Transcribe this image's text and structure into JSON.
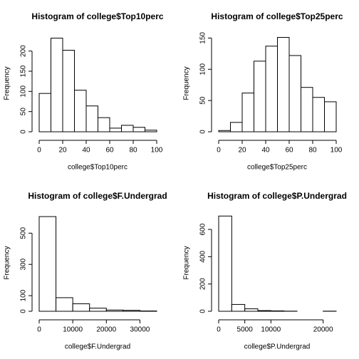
{
  "chart_data": [
    {
      "type": "histogram",
      "title": "Histogram of college$Top10perc",
      "xlabel": "college$Top10perc",
      "ylabel": "Frequency",
      "bins": [
        0,
        10,
        20,
        30,
        40,
        50,
        60,
        70,
        80,
        90,
        100
      ],
      "counts": [
        95,
        232,
        202,
        103,
        64,
        35,
        9,
        16,
        11,
        4
      ],
      "xlim": [
        0,
        100
      ],
      "ylim": [
        0,
        240
      ],
      "xticks": [
        0,
        20,
        40,
        60,
        80,
        100
      ],
      "yticks": [
        0,
        50,
        100,
        150,
        200
      ]
    },
    {
      "type": "histogram",
      "title": "Histogram of college$Top25perc",
      "xlabel": "college$Top25perc",
      "ylabel": "Frequency",
      "bins": [
        0,
        10,
        20,
        30,
        40,
        50,
        60,
        70,
        80,
        90,
        100
      ],
      "counts": [
        2,
        15,
        62,
        113,
        137,
        151,
        122,
        71,
        55,
        48
      ],
      "xlim": [
        0,
        100
      ],
      "ylim": [
        0,
        155
      ],
      "xticks": [
        0,
        20,
        40,
        60,
        80,
        100
      ],
      "yticks": [
        0,
        50,
        100,
        150
      ]
    },
    {
      "type": "histogram",
      "title": "Histogram of college$F.Undergrad",
      "xlabel": "college$F.Undergrad",
      "ylabel": "Frequency",
      "bins": [
        0,
        5000,
        10000,
        15000,
        20000,
        25000,
        30000,
        35000
      ],
      "counts": [
        606,
        87,
        48,
        20,
        8,
        6,
        2
      ],
      "xlim": [
        0,
        35000
      ],
      "ylim": [
        0,
        620
      ],
      "xticks": [
        0,
        10000,
        20000,
        30000
      ],
      "yticks": [
        0,
        100,
        300,
        500
      ]
    },
    {
      "type": "histogram",
      "title": "Histogram of college$P.Undergrad",
      "xlabel": "college$P.Undergrad",
      "ylabel": "Frequency",
      "bins": [
        0,
        2500,
        5000,
        7500,
        10000,
        12500,
        15000,
        17500,
        20000,
        22500
      ],
      "counts": [
        698,
        50,
        18,
        5,
        3,
        1,
        0,
        0,
        1
      ],
      "xlim": [
        0,
        22500
      ],
      "ylim": [
        0,
        710
      ],
      "xticks": [
        0,
        5000,
        10000,
        20000
      ],
      "yticks": [
        0,
        200,
        400,
        600
      ]
    }
  ]
}
